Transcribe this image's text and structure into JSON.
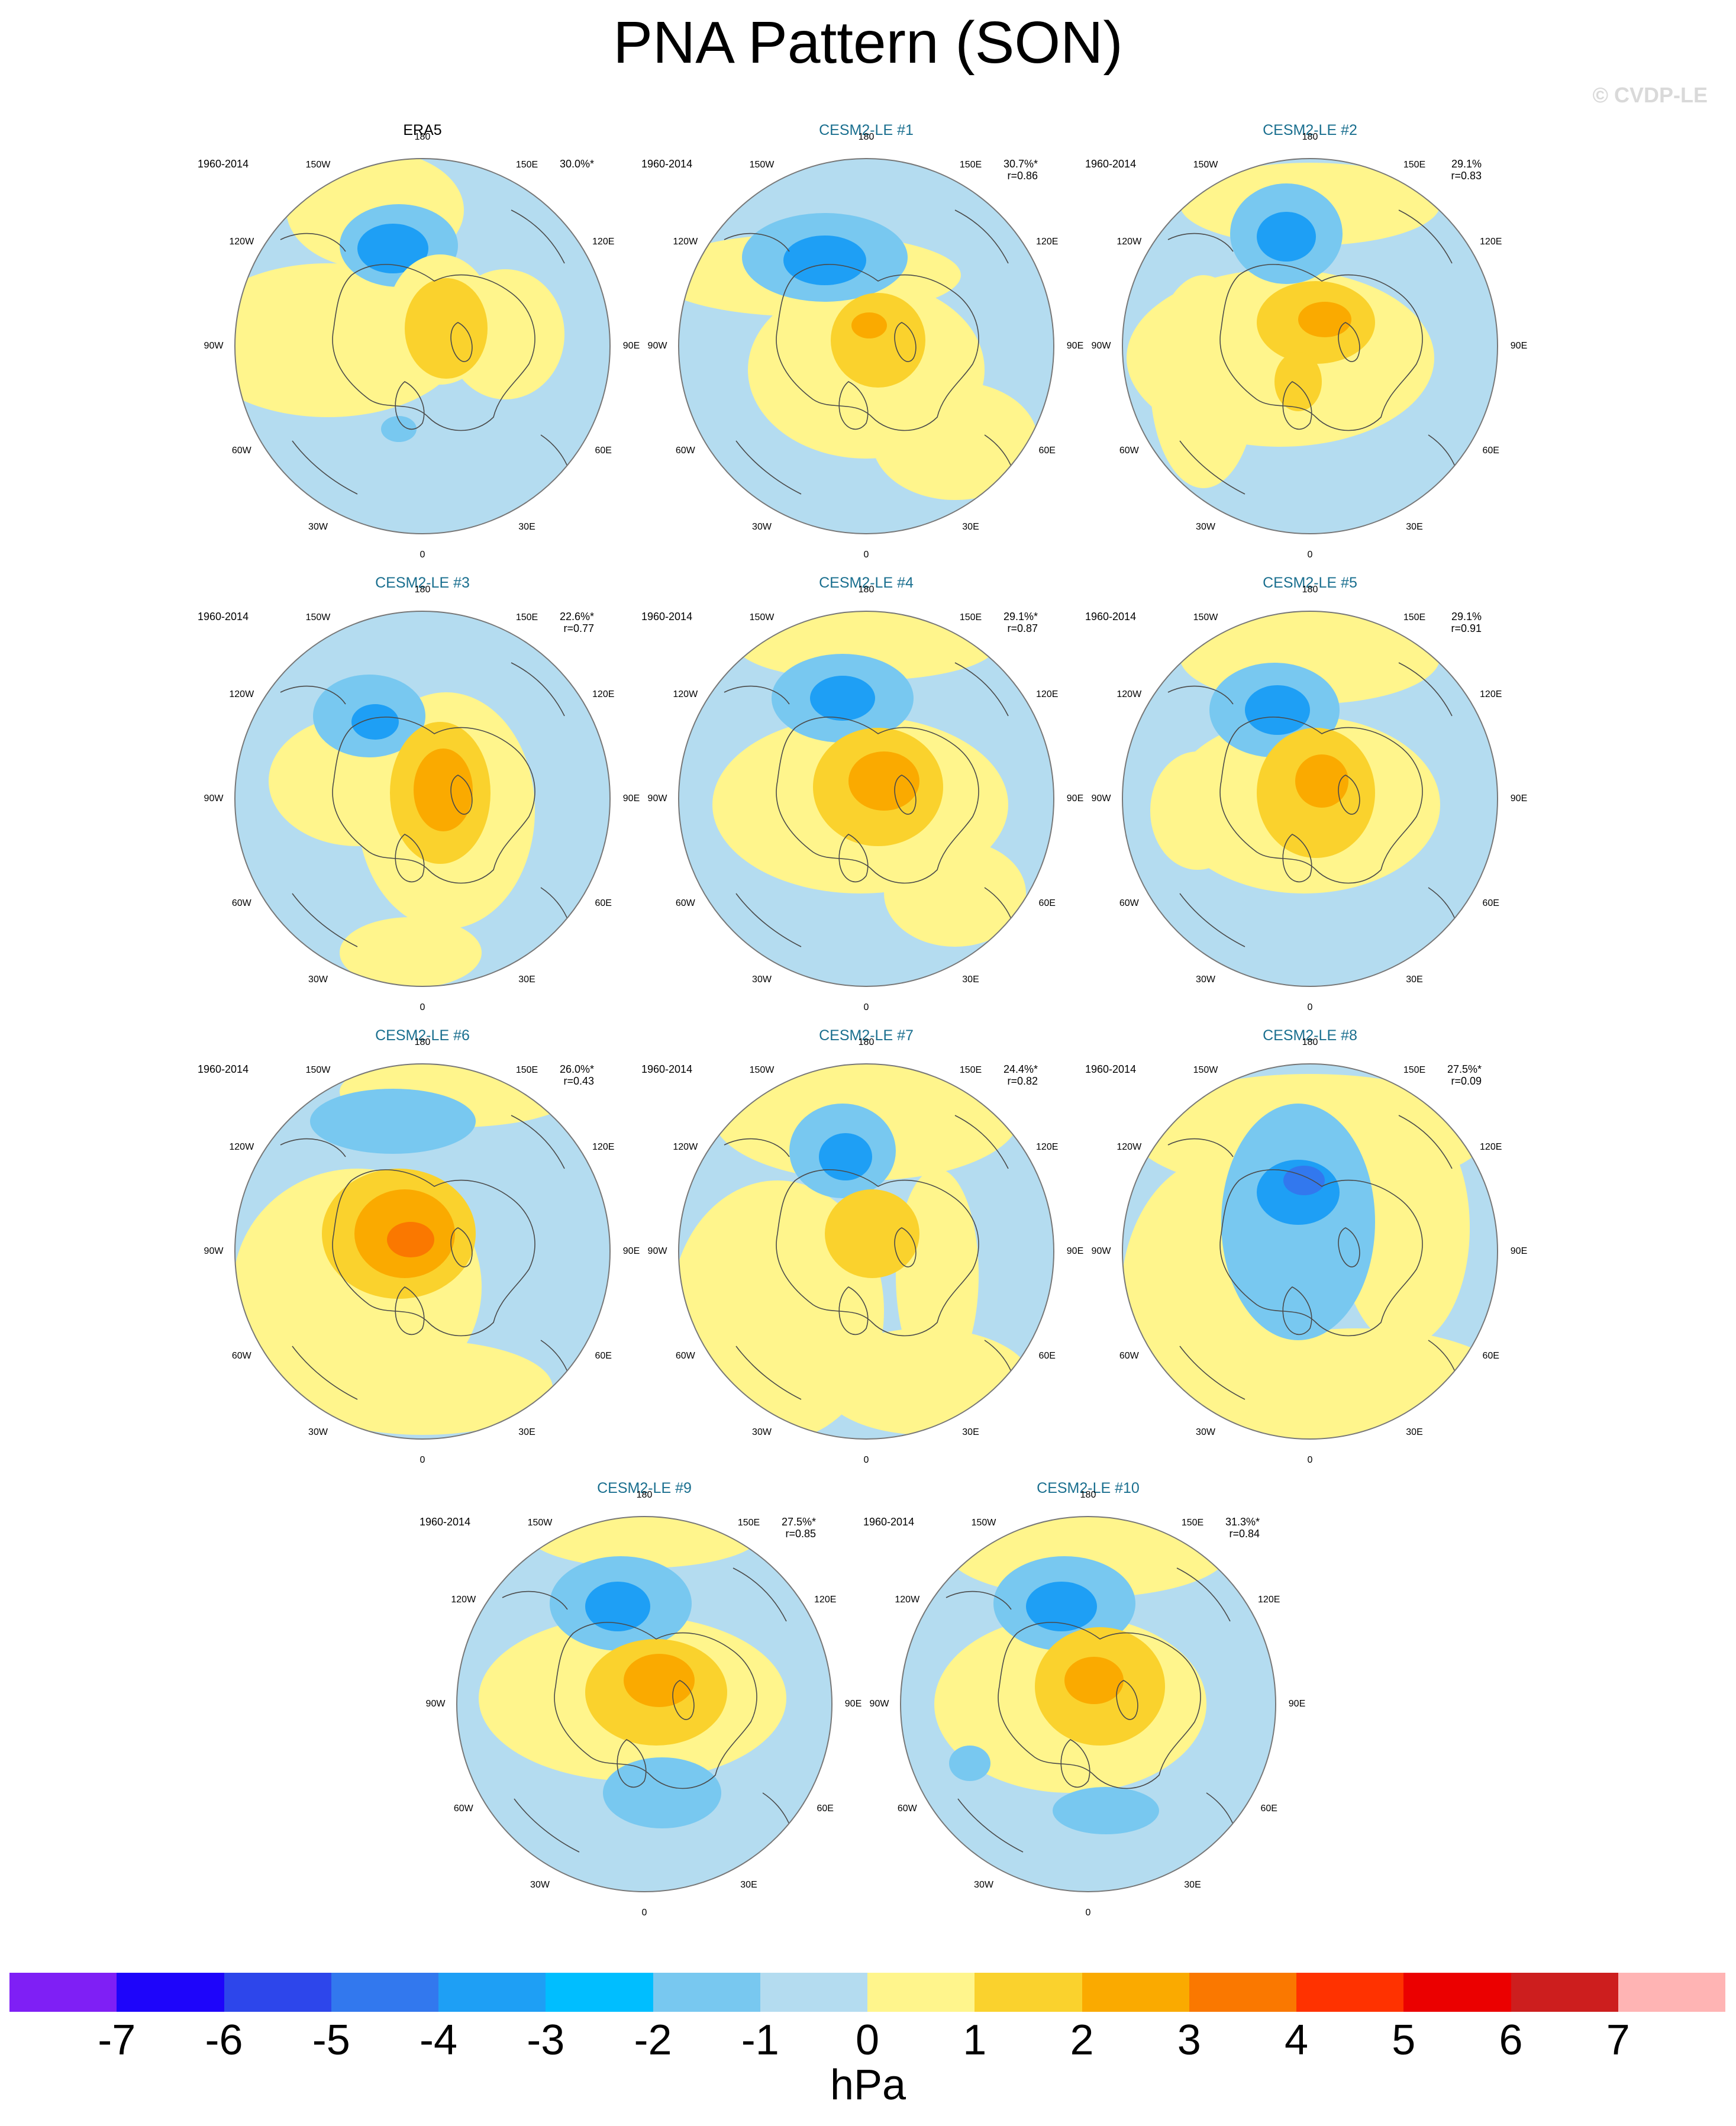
{
  "title": "PNA Pattern (SON)",
  "watermark": "© CVDP-LE",
  "colors": {
    "neg1": "#b4dcf0",
    "neg2": "#78c8f0",
    "neg3": "#1e9ff5",
    "pos1": "#fff58c",
    "pos2": "#fad22d",
    "pos3": "#faaa00",
    "coast": "#4a4a4a",
    "frame": "#777777"
  },
  "lon_labels": [
    "180",
    "150E",
    "120E",
    "90E",
    "60E",
    "30E",
    "0",
    "30W",
    "60W",
    "90W",
    "120W",
    "150W"
  ],
  "panels": [
    {
      "title": "ERA5",
      "obs": true,
      "period": "1960-2014",
      "pct": "30.0%*",
      "r": ""
    },
    {
      "title": "CESM2-LE #1",
      "obs": false,
      "period": "1960-2014",
      "pct": "30.7%*",
      "r": "r=0.86"
    },
    {
      "title": "CESM2-LE #2",
      "obs": false,
      "period": "1960-2014",
      "pct": "29.1%",
      "r": "r=0.83"
    },
    {
      "title": "CESM2-LE #3",
      "obs": false,
      "period": "1960-2014",
      "pct": "22.6%*",
      "r": "r=0.77"
    },
    {
      "title": "CESM2-LE #4",
      "obs": false,
      "period": "1960-2014",
      "pct": "29.1%*",
      "r": "r=0.87"
    },
    {
      "title": "CESM2-LE #5",
      "obs": false,
      "period": "1960-2014",
      "pct": "29.1%",
      "r": "r=0.91"
    },
    {
      "title": "CESM2-LE #6",
      "obs": false,
      "period": "1960-2014",
      "pct": "26.0%*",
      "r": "r=0.43"
    },
    {
      "title": "CESM2-LE #7",
      "obs": false,
      "period": "1960-2014",
      "pct": "24.4%*",
      "r": "r=0.82"
    },
    {
      "title": "CESM2-LE #8",
      "obs": false,
      "period": "1960-2014",
      "pct": "27.5%*",
      "r": "r=0.09"
    },
    {
      "title": "CESM2-LE #9",
      "obs": false,
      "period": "1960-2014",
      "pct": "27.5%*",
      "r": "r=0.85"
    },
    {
      "title": "CESM2-LE #10",
      "obs": false,
      "period": "1960-2014",
      "pct": "31.3%*",
      "r": "r=0.84"
    }
  ],
  "colorbar": {
    "units": "hPa",
    "ticks": [
      "-7",
      "-6",
      "-5",
      "-4",
      "-3",
      "-2",
      "-1",
      "0",
      "1",
      "2",
      "3",
      "4",
      "5",
      "6",
      "7"
    ],
    "colors": [
      "#7f1ff5",
      "#1e05fa",
      "#2d46eb",
      "#3278ee",
      "#1e9ff5",
      "#00beff",
      "#78c8f0",
      "#b4dcf0",
      "#fff58c",
      "#fad22d",
      "#faaa00",
      "#fa7800",
      "#ff3200",
      "#eb0000",
      "#cd1e1e",
      "#ffb4b4"
    ]
  }
}
